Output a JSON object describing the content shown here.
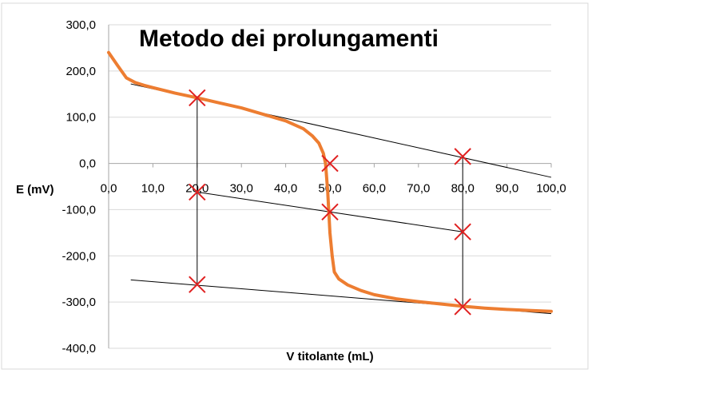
{
  "chart_data": {
    "type": "line",
    "title": "Metodo dei prolungamenti",
    "xlabel": "V titolante  (mL)",
    "ylabel": "E (mV)",
    "xlim": [
      0,
      100
    ],
    "ylim": [
      -400,
      300
    ],
    "x_ticks": [
      "0,0",
      "10,0",
      "20,0",
      "30,0",
      "40,0",
      "50,0",
      "60,0",
      "70,0",
      "80,0",
      "90,0",
      "100,0"
    ],
    "y_ticks": [
      "300,0",
      "200,0",
      "100,0",
      "0,0",
      "-100,0",
      "-200,0",
      "-300,0",
      "-400,0"
    ],
    "grid": "horizontal",
    "legend": "none",
    "colors": {
      "curve": "#ed7d31",
      "lines": "#000000",
      "markers": "#e02020",
      "grid": "#d9d9d9",
      "axis": "#a6a6a6"
    },
    "series": [
      {
        "values": [
          [
            0,
            240
          ],
          [
            2,
            212
          ],
          [
            4,
            185
          ],
          [
            6,
            175
          ],
          [
            8,
            169
          ],
          [
            10,
            164
          ],
          [
            15,
            152
          ],
          [
            20,
            142
          ],
          [
            25,
            131
          ],
          [
            30,
            120
          ],
          [
            35,
            106
          ],
          [
            40,
            92
          ],
          [
            44,
            75
          ],
          [
            46,
            60
          ],
          [
            47.5,
            44
          ],
          [
            48.5,
            22
          ],
          [
            49,
            0
          ],
          [
            49.5,
            -60
          ],
          [
            50,
            -150
          ],
          [
            50.5,
            -200
          ],
          [
            51,
            -235
          ],
          [
            52,
            -250
          ],
          [
            54,
            -263
          ],
          [
            57,
            -275
          ],
          [
            60,
            -284
          ],
          [
            65,
            -293
          ],
          [
            70,
            -299
          ],
          [
            75,
            -304
          ],
          [
            80,
            -309
          ],
          [
            85,
            -313
          ],
          [
            90,
            -316
          ],
          [
            95,
            -318
          ],
          [
            100,
            -320
          ]
        ]
      }
    ],
    "extrapolation_lines": [
      {
        "from": [
          5,
          172
        ],
        "to": [
          100,
          -30
        ]
      },
      {
        "from": [
          20,
          -62
        ],
        "to": [
          80,
          -148
        ]
      },
      {
        "from": [
          5,
          -252
        ],
        "to": [
          100,
          -325
        ]
      }
    ],
    "vertical_lines": [
      {
        "x": 20,
        "from": 142,
        "to": -262
      },
      {
        "x": 80,
        "from": 15,
        "to": -310
      }
    ],
    "markers": [
      [
        20,
        142
      ],
      [
        20,
        -62
      ],
      [
        20,
        -262
      ],
      [
        50,
        0
      ],
      [
        50,
        -105
      ],
      [
        80,
        15
      ],
      [
        80,
        -148
      ],
      [
        80,
        -310
      ]
    ]
  }
}
